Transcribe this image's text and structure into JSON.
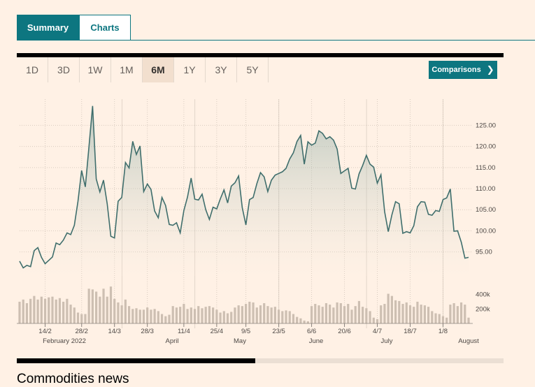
{
  "tabs": [
    {
      "label": "Summary",
      "active": true
    },
    {
      "label": "Charts",
      "active": false
    }
  ],
  "range_buttons": [
    "1D",
    "3D",
    "1W",
    "1M",
    "6M",
    "1Y",
    "3Y",
    "5Y"
  ],
  "selected_range": "6M",
  "comparisons": {
    "label": "Comparisons",
    "icon": "chevron-right-icon"
  },
  "colors": {
    "accent": "#0d7680",
    "line": "#3f6e6c",
    "volume": "#c9bcb0",
    "background": "#fff1e5"
  },
  "chart_data": [
    {
      "type": "area",
      "title": "",
      "y_ticks": [
        "125.00",
        "120.00",
        "115.00",
        "110.00",
        "105.00",
        "100.00",
        "95.00"
      ],
      "ylim": [
        89.3,
        131.2
      ],
      "values": [
        92.8,
        91.2,
        91.8,
        91.5,
        95.3,
        96.0,
        93.7,
        92.2,
        93.0,
        93.8,
        97.1,
        96.7,
        97.8,
        99.5,
        99.1,
        101.3,
        107.0,
        114.3,
        110.4,
        119.9,
        129.6,
        112.3,
        109.2,
        112.0,
        106.4,
        98.7,
        98.3,
        107.0,
        107.9,
        116.2,
        114.9,
        121.2,
        118.1,
        120.1,
        109.3,
        111.1,
        109.8,
        104.7,
        103.1,
        107.9,
        106.0,
        101.5,
        101.3,
        101.9,
        99.5,
        104.8,
        108.0,
        112.5,
        107.5,
        107.3,
        108.7,
        105.0,
        102.7,
        105.6,
        105.2,
        107.6,
        109.7,
        106.6,
        110.6,
        111.4,
        113.0,
        105.5,
        101.4,
        107.4,
        107.9,
        111.2,
        113.8,
        112.8,
        109.3,
        112.0,
        113.2,
        113.6,
        114.0,
        114.8,
        117.0,
        118.5,
        121.2,
        122.6,
        115.8,
        121.1,
        120.3,
        120.8,
        123.7,
        123.1,
        121.8,
        122.3,
        121.5,
        119.4,
        113.6,
        114.2,
        114.8,
        110.1,
        109.9,
        113.5,
        115.5,
        117.9,
        115.8,
        115.1,
        111.3,
        113.3,
        104.5,
        99.8,
        103.8,
        106.9,
        106.4,
        99.4,
        99.8,
        99.5,
        101.2,
        105.7,
        106.9,
        106.8,
        103.9,
        103.7,
        104.8,
        104.6,
        107.4,
        107.8,
        109.9,
        99.9,
        100.0,
        97.3,
        93.5,
        93.7
      ],
      "volume_ticks": [
        "400k",
        "200k"
      ],
      "volume_values": [
        300,
        330,
        280,
        340,
        380,
        330,
        370,
        340,
        360,
        370,
        330,
        350,
        300,
        340,
        260,
        220,
        150,
        130,
        130,
        480,
        470,
        440,
        370,
        480,
        370,
        510,
        340,
        290,
        250,
        330,
        240,
        200,
        210,
        190,
        190,
        220,
        190,
        200,
        170,
        130,
        100,
        120,
        240,
        220,
        230,
        270,
        200,
        220,
        200,
        240,
        210,
        230,
        240,
        220,
        190,
        150,
        170,
        140,
        160,
        220,
        250,
        240,
        270,
        300,
        290,
        220,
        250,
        280,
        240,
        220,
        230,
        190,
        170,
        180,
        170,
        130,
        90,
        70,
        40,
        30,
        240,
        270,
        250,
        230,
        280,
        260,
        220,
        290,
        280,
        240,
        270,
        190,
        240,
        310,
        230,
        210,
        170,
        80,
        60,
        250,
        270,
        410,
        380,
        320,
        310,
        270,
        290,
        250,
        230,
        300,
        260,
        250,
        230,
        170,
        140,
        130,
        100,
        80,
        260,
        280,
        240,
        290,
        260,
        80,
        0
      ],
      "x_ticks": [
        "14/2",
        "28/2",
        "14/3",
        "28/3",
        "11/4",
        "25/4",
        "9/5",
        "23/5",
        "6/6",
        "20/6",
        "4/7",
        "18/7",
        "1/8"
      ],
      "month_labels": [
        "February 2022",
        "April",
        "May",
        "June",
        "July",
        "August"
      ]
    }
  ],
  "news": {
    "title": "Commodities news"
  }
}
